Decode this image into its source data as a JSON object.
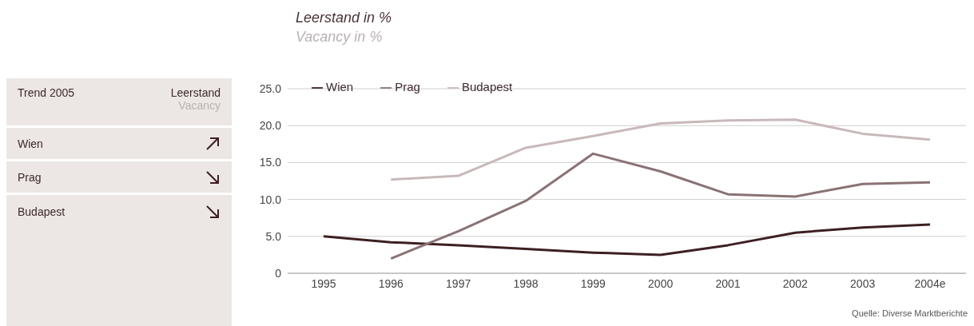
{
  "chart_data": [
    {
      "type": "other",
      "title": "Trend 2005",
      "annotations": [
        "Leerstand",
        "Vacancy",
        "Wien",
        "Prag",
        "Budapest"
      ]
    },
    {
      "type": "line",
      "title": "Leerstand in %",
      "subtitle": "Vacancy in %",
      "categories": [
        "1995",
        "1996",
        "1997",
        "1998",
        "1999",
        "2000",
        "2001",
        "2002",
        "2003",
        "2004e"
      ],
      "series": [
        {
          "name": "Wien",
          "color": "#3d1f22",
          "values": [
            5.0,
            4.2,
            3.8,
            3.3,
            2.8,
            2.5,
            3.8,
            5.5,
            6.2,
            6.6
          ]
        },
        {
          "name": "Prag",
          "color": "#8a7275",
          "values": [
            null,
            2.0,
            5.7,
            9.8,
            16.2,
            13.8,
            10.7,
            10.4,
            12.1,
            12.3
          ]
        },
        {
          "name": "Budapest",
          "color": "#c9b8ba",
          "values": [
            null,
            12.7,
            13.2,
            17.0,
            18.6,
            20.3,
            20.7,
            20.8,
            18.9,
            18.1
          ]
        }
      ],
      "ylim": [
        0,
        25
      ],
      "yticks": [
        {
          "value": 0,
          "label": "0"
        },
        {
          "value": 5,
          "label": "5.0"
        },
        {
          "value": 10,
          "label": "10.0"
        },
        {
          "value": 15,
          "label": "15.0"
        },
        {
          "value": 20,
          "label": "20.0"
        },
        {
          "value": 25,
          "label": "25.0"
        }
      ],
      "grid": "y",
      "legend": "top left",
      "marker": "none",
      "line_style": "solid",
      "annotations": [
        "Quelle: Diverse Marktberichte"
      ]
    }
  ]
}
